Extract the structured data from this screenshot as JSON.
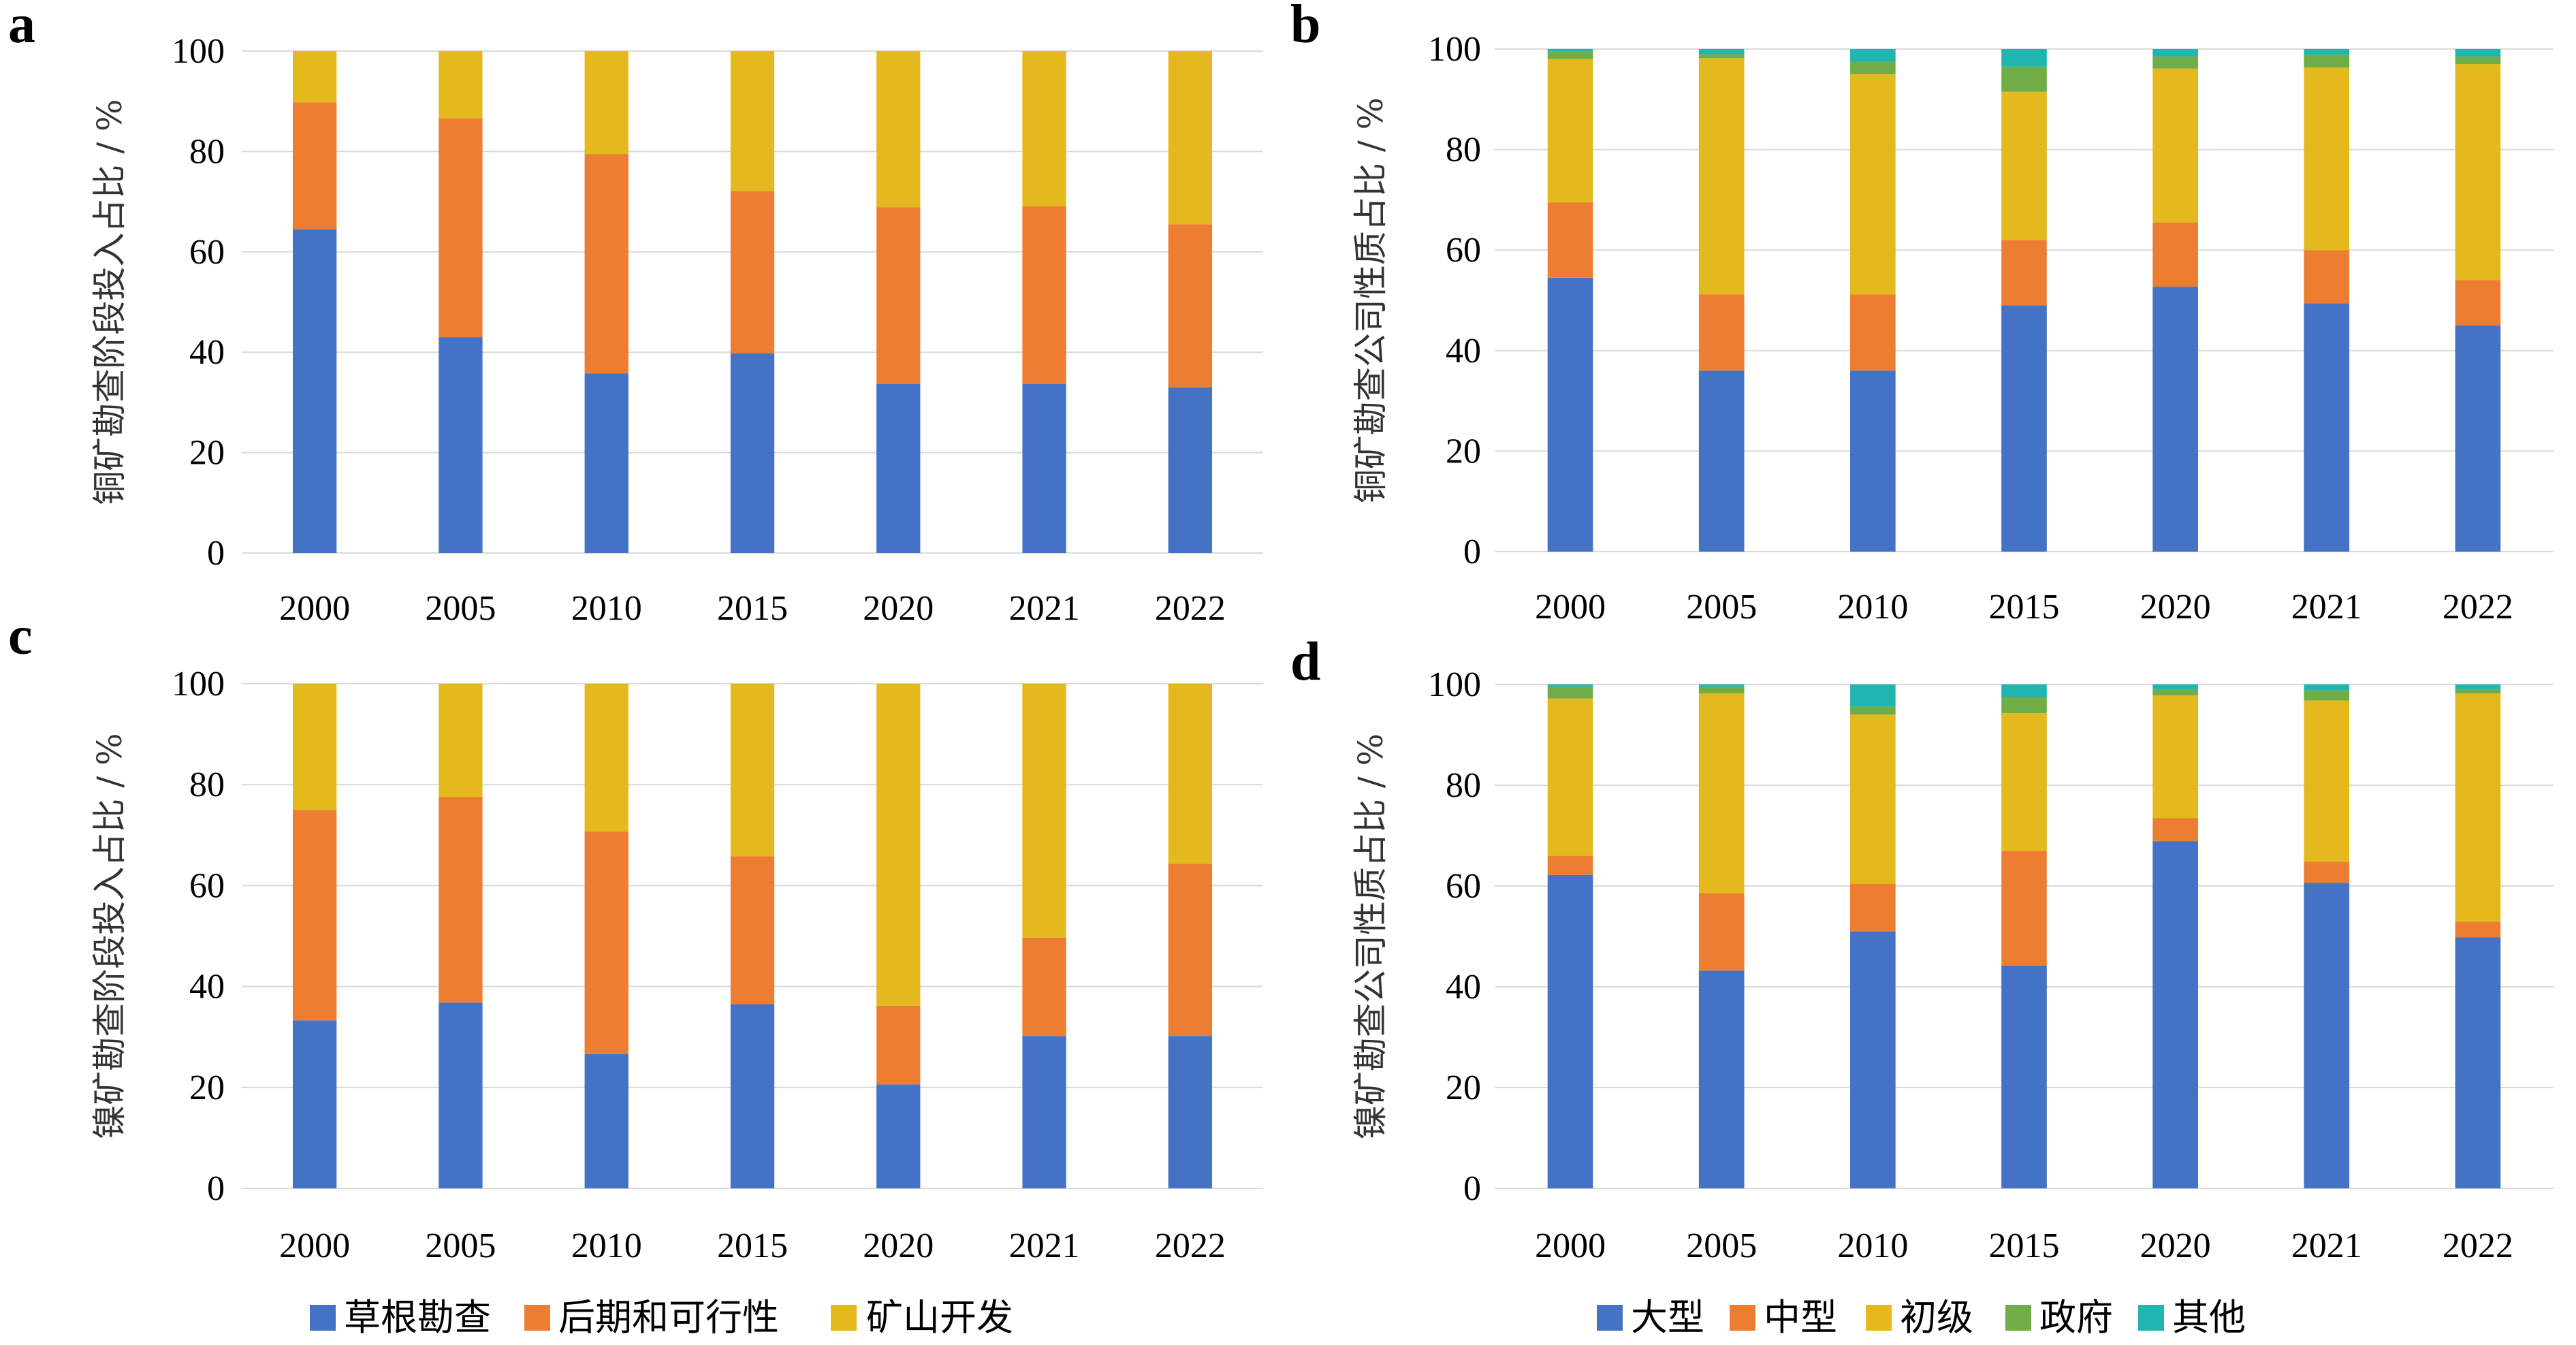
{
  "colors": {
    "blue": "#4472C4",
    "orange": "#ED7D31",
    "yellow": "#E4B91E",
    "green": "#70AD47",
    "teal": "#22B5B0"
  },
  "chart_data": [
    {
      "type": "bar",
      "stacked": true,
      "panel_label": "a",
      "ylabel": "铜矿勘查阶段投入占比 / %",
      "categories": [
        "2000",
        "2005",
        "2010",
        "2015",
        "2020",
        "2021",
        "2022"
      ],
      "ylim": [
        0,
        100
      ],
      "yticks": [
        "0",
        "20",
        "40",
        "60",
        "80",
        "100"
      ],
      "grid": true,
      "legend": "bottom",
      "series": [
        {
          "name": "草根勘查",
          "color": "#4472C4",
          "values": [
            64.5,
            43,
            35.8,
            39.8,
            33.7,
            33.7,
            33
          ]
        },
        {
          "name": "后期和可行性",
          "color": "#ED7D31",
          "values": [
            25.3,
            43.6,
            43.7,
            32.3,
            35.2,
            35.4,
            32.5
          ]
        },
        {
          "name": "矿山开发",
          "color": "#E4B91E",
          "values": [
            10.2,
            13.4,
            20.5,
            27.9,
            31.1,
            30.9,
            34.5
          ]
        }
      ]
    },
    {
      "type": "bar",
      "stacked": true,
      "panel_label": "b",
      "ylabel": "铜矿勘查公司性质占比 / %",
      "categories": [
        "2000",
        "2005",
        "2010",
        "2015",
        "2020",
        "2021",
        "2022"
      ],
      "ylim": [
        0,
        100
      ],
      "yticks": [
        "0",
        "20",
        "40",
        "60",
        "80",
        "100"
      ],
      "grid": true,
      "legend": "bottom",
      "series": [
        {
          "name": "大型",
          "color": "#4472C4",
          "values": [
            54.5,
            36,
            36,
            49,
            52.7,
            49.4,
            45
          ]
        },
        {
          "name": "中型",
          "color": "#ED7D31",
          "values": [
            15,
            15.2,
            15.2,
            13,
            12.8,
            10.6,
            9
          ]
        },
        {
          "name": "初级",
          "color": "#E4B91E",
          "values": [
            28.5,
            47,
            43.8,
            29.5,
            30.6,
            36.3,
            43
          ]
        },
        {
          "name": "政府",
          "color": "#70AD47",
          "values": [
            1.5,
            0.8,
            2.5,
            5,
            2.4,
            2.6,
            1.5
          ]
        },
        {
          "name": "其他",
          "color": "#22B5B0",
          "values": [
            0.5,
            1,
            2.5,
            3.5,
            1.5,
            1.1,
            1.5
          ]
        }
      ]
    },
    {
      "type": "bar",
      "stacked": true,
      "panel_label": "c",
      "ylabel": "镍矿勘查阶段投入占比 / %",
      "categories": [
        "2000",
        "2005",
        "2010",
        "2015",
        "2020",
        "2021",
        "2022"
      ],
      "ylim": [
        0,
        100
      ],
      "yticks": [
        "0",
        "20",
        "40",
        "60",
        "80",
        "100"
      ],
      "grid": true,
      "legend": "bottom",
      "series": [
        {
          "name": "草根勘查",
          "color": "#4472C4",
          "values": [
            33.3,
            36.8,
            26.6,
            36.5,
            20.6,
            30.2,
            30.2
          ]
        },
        {
          "name": "后期和可行性",
          "color": "#ED7D31",
          "values": [
            41.7,
            40.8,
            44.1,
            29.3,
            15.6,
            19.5,
            34.1
          ]
        },
        {
          "name": "矿山开发",
          "color": "#E4B91E",
          "values": [
            25,
            22.4,
            29.3,
            34.2,
            63.8,
            50.3,
            35.7
          ]
        }
      ]
    },
    {
      "type": "bar",
      "stacked": true,
      "panel_label": "d",
      "ylabel": "镍矿勘查公司性质占比 / %",
      "categories": [
        "2000",
        "2005",
        "2010",
        "2015",
        "2020",
        "2021",
        "2022"
      ],
      "ylim": [
        0,
        100
      ],
      "yticks": [
        "0",
        "20",
        "40",
        "60",
        "80",
        "100"
      ],
      "grid": true,
      "legend": "bottom",
      "series": [
        {
          "name": "大型",
          "color": "#4472C4",
          "values": [
            62.2,
            43.2,
            51,
            44.2,
            68.9,
            60.6,
            49.8
          ]
        },
        {
          "name": "中型",
          "color": "#ED7D31",
          "values": [
            3.8,
            15.4,
            9.4,
            22.7,
            4.6,
            4.2,
            3.1
          ]
        },
        {
          "name": "初级",
          "color": "#E4B91E",
          "values": [
            31.2,
            39.6,
            33.6,
            27.4,
            24.3,
            32,
            45.3
          ]
        },
        {
          "name": "政府",
          "color": "#70AD47",
          "values": [
            2.3,
            1.3,
            1.6,
            3.2,
            1.2,
            2,
            0.8
          ]
        },
        {
          "name": "其他",
          "color": "#22B5B0",
          "values": [
            0.5,
            0.5,
            4.4,
            2.5,
            1,
            1.2,
            1
          ]
        }
      ]
    }
  ],
  "legends": {
    "left": [
      "草根勘查",
      "后期和可行性",
      "矿山开发"
    ],
    "right": [
      "大型",
      "中型",
      "初级",
      "政府",
      "其他"
    ]
  }
}
